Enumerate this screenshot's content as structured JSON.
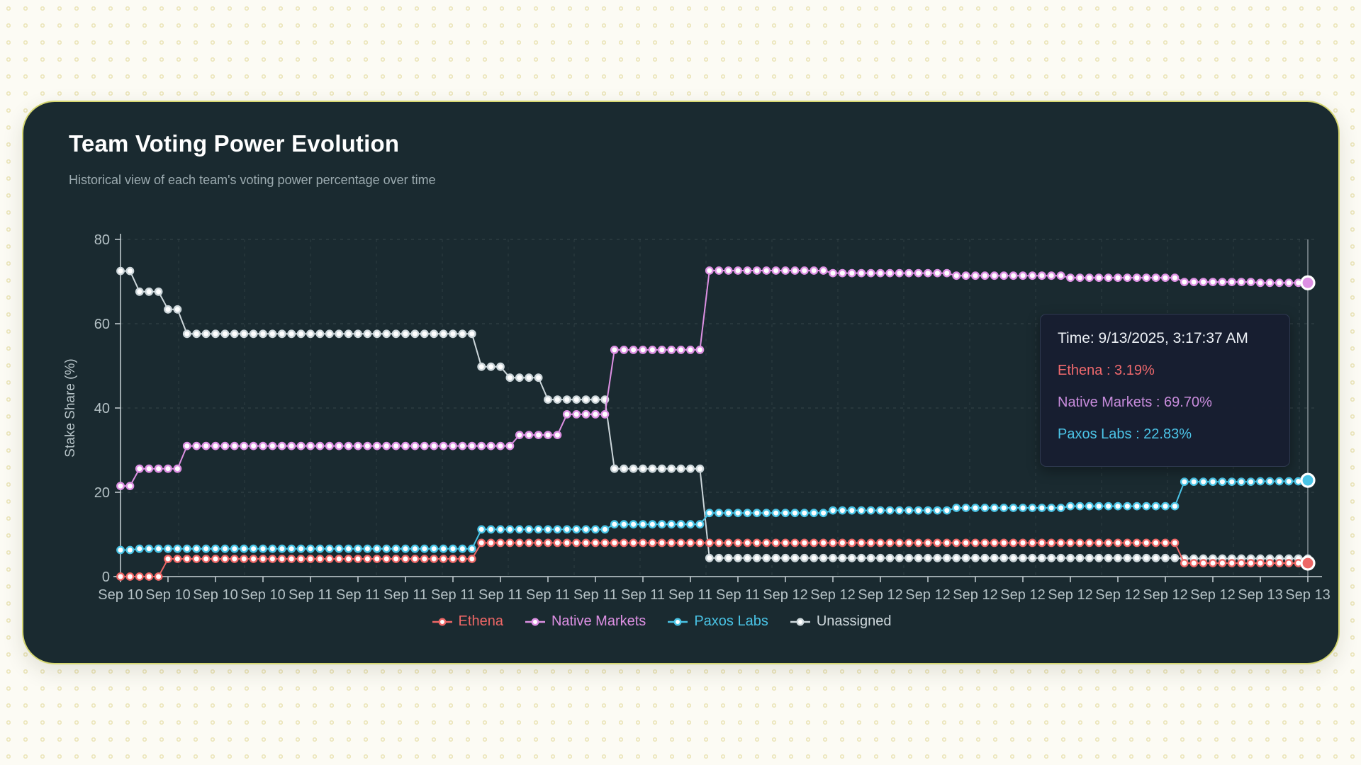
{
  "card": {
    "title": "Team Voting Power Evolution",
    "subtitle": "Historical view of each team's voting power percentage over time",
    "background": "#1a2a30",
    "border_color": "#d6d772"
  },
  "colors": {
    "ethena": "#ee6766",
    "native_markets": "#dd90e3",
    "paxos_labs": "#49c3e5",
    "unassigned": "#ccd6da",
    "axis_text": "#b5c2c6",
    "axis_line": "#c7d1d5",
    "tooltip_title": "#edf1f6"
  },
  "chart_data": {
    "type": "line",
    "title": "Team Voting Power Evolution",
    "xlabel": "",
    "ylabel": "Stake Share (%)",
    "ylim": [
      0,
      80
    ],
    "y_ticks": [
      0,
      20,
      40,
      60,
      80
    ],
    "grid": "dashed",
    "legend_position": "bottom",
    "marker_style": "white-filled-circle-colored-ring",
    "points_per_tick": 5,
    "x_tick_labels": [
      "Sep 10",
      "Sep 10",
      "Sep 10",
      "Sep 10",
      "Sep 11",
      "Sep 11",
      "Sep 11",
      "Sep 11",
      "Sep 11",
      "Sep 11",
      "Sep 11",
      "Sep 11",
      "Sep 11",
      "Sep 11",
      "Sep 12",
      "Sep 12",
      "Sep 12",
      "Sep 12",
      "Sep 12",
      "Sep 12",
      "Sep 12",
      "Sep 12",
      "Sep 12",
      "Sep 12",
      "Sep 13",
      "Sep 13"
    ],
    "draw_order": [
      "Unassigned",
      "Native Markets",
      "Paxos Labs",
      "Ethena"
    ],
    "series": [
      {
        "name": "Ethena",
        "color": "#ee6766",
        "active_end_point": true,
        "end_value": 3.19,
        "values": [
          0,
          0,
          0,
          0,
          0,
          4.2,
          4.2,
          4.2,
          4.2,
          4.2,
          4.2,
          4.2,
          4.2,
          4.2,
          4.2,
          4.2,
          4.2,
          4.2,
          4.2,
          4.2,
          4.2,
          4.2,
          4.2,
          4.2,
          4.2,
          4.2,
          4.2,
          4.2,
          4.2,
          4.2,
          4.2,
          4.2,
          4.2,
          4.2,
          4.2,
          4.2,
          4.2,
          4.2,
          8,
          8,
          8,
          8,
          8,
          8,
          8,
          8,
          8,
          8,
          8,
          8,
          8,
          8,
          8,
          8,
          8,
          8,
          8,
          8,
          8,
          8,
          8,
          8,
          8,
          8,
          8,
          8,
          8,
          8,
          8,
          8,
          8,
          8,
          8,
          8,
          8,
          8,
          8,
          8,
          8,
          8,
          8,
          8,
          8,
          8,
          8,
          8,
          8,
          8,
          8,
          8,
          8,
          8,
          8,
          8,
          8,
          8,
          8,
          8,
          8,
          8,
          8,
          8,
          8,
          8,
          8,
          8,
          8,
          8,
          8,
          8,
          8,
          8,
          3.19,
          3.19,
          3.19,
          3.19,
          3.19,
          3.19,
          3.19,
          3.19,
          3.19,
          3.19,
          3.19,
          3.19,
          3.19,
          3.19
        ]
      },
      {
        "name": "Native Markets",
        "color": "#dd90e3",
        "active_end_point": true,
        "end_value": 69.7,
        "values": [
          21.5,
          21.5,
          25.6,
          25.6,
          25.6,
          25.6,
          25.6,
          31,
          31,
          31,
          31,
          31,
          31,
          31,
          31,
          31,
          31,
          31,
          31,
          31,
          31,
          31,
          31,
          31,
          31,
          31,
          31,
          31,
          31,
          31,
          31,
          31,
          31,
          31,
          31,
          31,
          31,
          31,
          31,
          31,
          31,
          31,
          33.6,
          33.6,
          33.6,
          33.6,
          33.6,
          38.5,
          38.5,
          38.5,
          38.5,
          38.5,
          53.8,
          53.8,
          53.8,
          53.8,
          53.8,
          53.8,
          53.8,
          53.8,
          53.8,
          53.8,
          72.6,
          72.6,
          72.6,
          72.6,
          72.6,
          72.6,
          72.6,
          72.6,
          72.6,
          72.6,
          72.6,
          72.6,
          72.6,
          72,
          72,
          72,
          72,
          72,
          72,
          72,
          72,
          72,
          72,
          72,
          72,
          72,
          71.4,
          71.4,
          71.4,
          71.4,
          71.4,
          71.4,
          71.4,
          71.4,
          71.4,
          71.4,
          71.4,
          71.4,
          70.9,
          70.9,
          70.9,
          70.9,
          70.9,
          70.9,
          70.9,
          70.9,
          70.9,
          70.9,
          70.9,
          70.9,
          69.9,
          69.9,
          69.9,
          69.9,
          69.9,
          69.9,
          69.9,
          69.9,
          69.7,
          69.7,
          69.7,
          69.7,
          69.7,
          69.7
        ]
      },
      {
        "name": "Paxos Labs",
        "color": "#49c3e5",
        "active_end_point": true,
        "end_value": 22.83,
        "values": [
          6.3,
          6.3,
          6.6,
          6.6,
          6.6,
          6.6,
          6.6,
          6.6,
          6.6,
          6.6,
          6.6,
          6.6,
          6.6,
          6.6,
          6.6,
          6.6,
          6.6,
          6.6,
          6.6,
          6.6,
          6.6,
          6.6,
          6.6,
          6.6,
          6.6,
          6.6,
          6.6,
          6.6,
          6.6,
          6.6,
          6.6,
          6.6,
          6.6,
          6.6,
          6.6,
          6.6,
          6.6,
          6.6,
          11.2,
          11.2,
          11.2,
          11.2,
          11.2,
          11.2,
          11.2,
          11.2,
          11.2,
          11.2,
          11.2,
          11.2,
          11.2,
          11.2,
          12.4,
          12.4,
          12.4,
          12.4,
          12.4,
          12.4,
          12.4,
          12.4,
          12.4,
          12.4,
          15.1,
          15.1,
          15.1,
          15.1,
          15.1,
          15.1,
          15.1,
          15.1,
          15.1,
          15.1,
          15.1,
          15.1,
          15.1,
          15.7,
          15.7,
          15.7,
          15.7,
          15.7,
          15.7,
          15.7,
          15.7,
          15.7,
          15.7,
          15.7,
          15.7,
          15.7,
          16.3,
          16.3,
          16.3,
          16.3,
          16.3,
          16.3,
          16.3,
          16.3,
          16.3,
          16.3,
          16.3,
          16.3,
          16.7,
          16.7,
          16.7,
          16.7,
          16.7,
          16.7,
          16.7,
          16.7,
          16.7,
          16.7,
          16.7,
          16.7,
          22.5,
          22.5,
          22.5,
          22.5,
          22.5,
          22.5,
          22.5,
          22.5,
          22.6,
          22.6,
          22.6,
          22.6,
          22.6,
          22.83
        ]
      },
      {
        "name": "Unassigned",
        "color": "#ccd6da",
        "active_end_point": false,
        "end_value": 4.28,
        "values": [
          72.5,
          72.5,
          67.6,
          67.6,
          67.6,
          63.4,
          63.4,
          57.6,
          57.6,
          57.6,
          57.6,
          57.6,
          57.6,
          57.6,
          57.6,
          57.6,
          57.6,
          57.6,
          57.6,
          57.6,
          57.6,
          57.6,
          57.6,
          57.6,
          57.6,
          57.6,
          57.6,
          57.6,
          57.6,
          57.6,
          57.6,
          57.6,
          57.6,
          57.6,
          57.6,
          57.6,
          57.6,
          57.6,
          49.8,
          49.8,
          49.8,
          47.2,
          47.2,
          47.2,
          47.2,
          42,
          42,
          42,
          42,
          42,
          42,
          42,
          25.6,
          25.6,
          25.6,
          25.6,
          25.6,
          25.6,
          25.6,
          25.6,
          25.6,
          25.6,
          4.4,
          4.4,
          4.4,
          4.4,
          4.4,
          4.4,
          4.4,
          4.4,
          4.4,
          4.4,
          4.4,
          4.4,
          4.4,
          4.4,
          4.4,
          4.4,
          4.4,
          4.4,
          4.4,
          4.4,
          4.4,
          4.4,
          4.4,
          4.4,
          4.4,
          4.4,
          4.4,
          4.4,
          4.4,
          4.4,
          4.4,
          4.4,
          4.4,
          4.4,
          4.4,
          4.4,
          4.4,
          4.4,
          4.4,
          4.4,
          4.4,
          4.4,
          4.4,
          4.4,
          4.4,
          4.4,
          4.4,
          4.4,
          4.4,
          4.4,
          4.28,
          4.28,
          4.28,
          4.28,
          4.28,
          4.28,
          4.28,
          4.28,
          4.28,
          4.28,
          4.28,
          4.28,
          4.28,
          4.28
        ]
      }
    ]
  },
  "tooltip": {
    "time_label": "Time: 9/13/2025, 3:17:37 AM",
    "rows": [
      {
        "label": "Ethena",
        "value": "3.19%",
        "color": "#f0696d"
      },
      {
        "label": "Native Markets",
        "value": "69.70%",
        "color": "#c88cdc"
      },
      {
        "label": "Paxos Labs",
        "value": "22.83%",
        "color": "#4cc5e8"
      }
    ]
  },
  "legend": {
    "items": [
      {
        "label": "Ethena",
        "color": "#ee6766"
      },
      {
        "label": "Native Markets",
        "color": "#dd90e3"
      },
      {
        "label": "Paxos Labs",
        "color": "#49c3e5"
      },
      {
        "label": "Unassigned",
        "color": "#cfd9dd"
      }
    ]
  }
}
